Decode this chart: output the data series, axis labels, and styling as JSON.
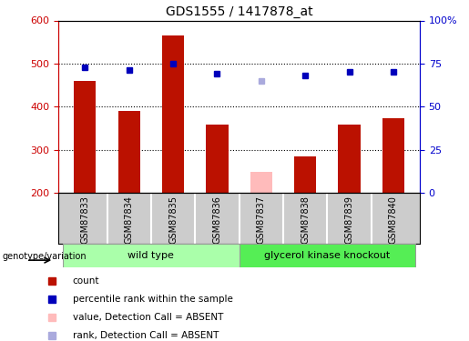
{
  "title": "GDS1555 / 1417878_at",
  "samples": [
    "GSM87833",
    "GSM87834",
    "GSM87835",
    "GSM87836",
    "GSM87837",
    "GSM87838",
    "GSM87839",
    "GSM87840"
  ],
  "bar_values": [
    460,
    390,
    565,
    358,
    248,
    285,
    358,
    372
  ],
  "bar_colors": [
    "#bb1100",
    "#bb1100",
    "#bb1100",
    "#bb1100",
    "#ffbbbb",
    "#bb1100",
    "#bb1100",
    "#bb1100"
  ],
  "rank_values": [
    73,
    71,
    75,
    69,
    65,
    68,
    70,
    70
  ],
  "rank_colors": [
    "#0000bb",
    "#0000bb",
    "#0000bb",
    "#0000bb",
    "#aaaadd",
    "#0000bb",
    "#0000bb",
    "#0000bb"
  ],
  "ymin": 200,
  "ymax": 600,
  "yticks": [
    200,
    300,
    400,
    500,
    600
  ],
  "yright_ticks": [
    0,
    25,
    50,
    75,
    100
  ],
  "yright_labels": [
    "0",
    "25",
    "50",
    "75",
    "100%"
  ],
  "wt_color": "#aaffaa",
  "gk_color": "#55ee55",
  "sample_bg": "#cccccc",
  "genotype_label": "genotype/variation",
  "legend_items": [
    {
      "color": "#bb1100",
      "label": "count"
    },
    {
      "color": "#0000bb",
      "label": "percentile rank within the sample"
    },
    {
      "color": "#ffbbbb",
      "label": "value, Detection Call = ABSENT"
    },
    {
      "color": "#aaaadd",
      "label": "rank, Detection Call = ABSENT"
    }
  ],
  "bar_width": 0.5,
  "tick_color_left": "#cc0000",
  "tick_color_right": "#0000cc"
}
